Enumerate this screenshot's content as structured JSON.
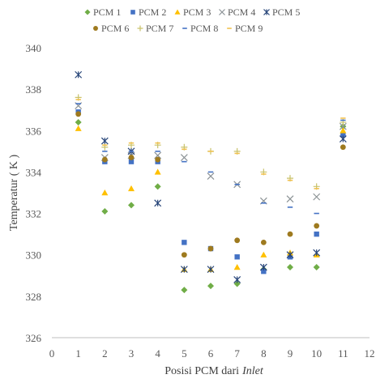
{
  "chart_data": {
    "type": "scatter",
    "title": "",
    "xlabel": "Posisi PCM dari",
    "xlabel_italic": "Inlet",
    "ylabel": "Temperatur ( K )",
    "xlim": [
      0,
      12
    ],
    "ylim": [
      326,
      340
    ],
    "x_ticks": [
      "0",
      "1",
      "2",
      "3",
      "4",
      "5",
      "6",
      "7",
      "8",
      "9",
      "10",
      "11",
      "12"
    ],
    "y_ticks": [
      "326",
      "328",
      "330",
      "332",
      "334",
      "336",
      "338",
      "340"
    ],
    "grid": false,
    "legend_position": "top",
    "series": [
      {
        "name": "PCM 1",
        "marker": "diamond",
        "color": "#70ad47",
        "points": [
          [
            1,
            336.4
          ],
          [
            2,
            332.1
          ],
          [
            3,
            332.4
          ],
          [
            4,
            333.3
          ],
          [
            5,
            328.3
          ],
          [
            6,
            328.5
          ],
          [
            7,
            328.6
          ],
          [
            8,
            329.3
          ],
          [
            9,
            329.4
          ],
          [
            10,
            329.4
          ],
          [
            11,
            336.2
          ]
        ]
      },
      {
        "name": "PCM 2",
        "marker": "square",
        "color": "#4472c4",
        "points": [
          [
            1,
            336.9
          ],
          [
            2,
            334.5
          ],
          [
            3,
            334.5
          ],
          [
            4,
            334.5
          ],
          [
            5,
            330.6
          ],
          [
            6,
            330.3
          ],
          [
            7,
            329.9
          ],
          [
            8,
            329.2
          ],
          [
            9,
            329.9
          ],
          [
            10,
            331.0
          ],
          [
            11,
            335.8
          ]
        ]
      },
      {
        "name": "PCM 3",
        "marker": "triangle",
        "color": "#ffc000",
        "points": [
          [
            1,
            336.1
          ],
          [
            2,
            333.0
          ],
          [
            3,
            333.2
          ],
          [
            4,
            334.0
          ],
          [
            5,
            329.3
          ],
          [
            6,
            329.3
          ],
          [
            7,
            329.4
          ],
          [
            8,
            330.0
          ],
          [
            9,
            330.1
          ],
          [
            10,
            330.0
          ],
          [
            11,
            336.0
          ]
        ]
      },
      {
        "name": "PCM 4",
        "marker": "x",
        "color": "#8c9396",
        "points": [
          [
            1,
            337.2
          ],
          [
            2,
            334.7
          ],
          [
            3,
            334.8
          ],
          [
            4,
            334.8
          ],
          [
            5,
            334.7
          ],
          [
            6,
            333.8
          ],
          [
            7,
            333.4
          ],
          [
            8,
            332.6
          ],
          [
            9,
            332.7
          ],
          [
            10,
            332.8
          ],
          [
            11,
            336.2
          ]
        ]
      },
      {
        "name": "PCM 5",
        "marker": "star",
        "color": "#264478",
        "points": [
          [
            1,
            338.7
          ],
          [
            2,
            335.5
          ],
          [
            3,
            335.0
          ],
          [
            4,
            332.5
          ],
          [
            5,
            329.3
          ],
          [
            6,
            329.3
          ],
          [
            7,
            328.8
          ],
          [
            8,
            329.4
          ],
          [
            9,
            330.0
          ],
          [
            10,
            330.1
          ],
          [
            11,
            335.6
          ]
        ]
      },
      {
        "name": "PCM 6",
        "marker": "circle",
        "color": "#9e7a1f",
        "points": [
          [
            1,
            336.8
          ],
          [
            2,
            334.6
          ],
          [
            3,
            334.7
          ],
          [
            4,
            334.6
          ],
          [
            5,
            330.0
          ],
          [
            6,
            330.3
          ],
          [
            7,
            330.7
          ],
          [
            8,
            330.6
          ],
          [
            9,
            331.0
          ],
          [
            10,
            331.4
          ],
          [
            11,
            335.2
          ]
        ]
      },
      {
        "name": "PCM 7",
        "marker": "plus",
        "color": "#c9c26a",
        "points": [
          [
            1,
            337.6
          ],
          [
            2,
            335.2
          ],
          [
            3,
            335.3
          ],
          [
            4,
            335.3
          ],
          [
            5,
            335.2
          ],
          [
            6,
            335.0
          ],
          [
            7,
            335.0
          ],
          [
            8,
            334.0
          ],
          [
            9,
            333.7
          ],
          [
            10,
            333.3
          ],
          [
            11,
            336.4
          ]
        ]
      },
      {
        "name": "PCM 8",
        "marker": "dash",
        "color": "#4472c4",
        "points": [
          [
            1,
            337.3
          ],
          [
            2,
            335.0
          ],
          [
            3,
            335.0
          ],
          [
            4,
            335.0
          ],
          [
            5,
            334.5
          ],
          [
            6,
            334.0
          ],
          [
            7,
            333.4
          ],
          [
            8,
            332.5
          ],
          [
            9,
            332.3
          ],
          [
            10,
            332.0
          ],
          [
            11,
            336.5
          ]
        ]
      },
      {
        "name": "PCM 9",
        "marker": "dash",
        "color": "#f2c14e",
        "points": [
          [
            1,
            337.5
          ],
          [
            2,
            335.3
          ],
          [
            3,
            335.4
          ],
          [
            4,
            335.4
          ],
          [
            5,
            335.1
          ],
          [
            6,
            335.0
          ],
          [
            7,
            334.9
          ],
          [
            8,
            333.9
          ],
          [
            9,
            333.6
          ],
          [
            10,
            333.2
          ],
          [
            11,
            336.6
          ]
        ]
      }
    ]
  }
}
